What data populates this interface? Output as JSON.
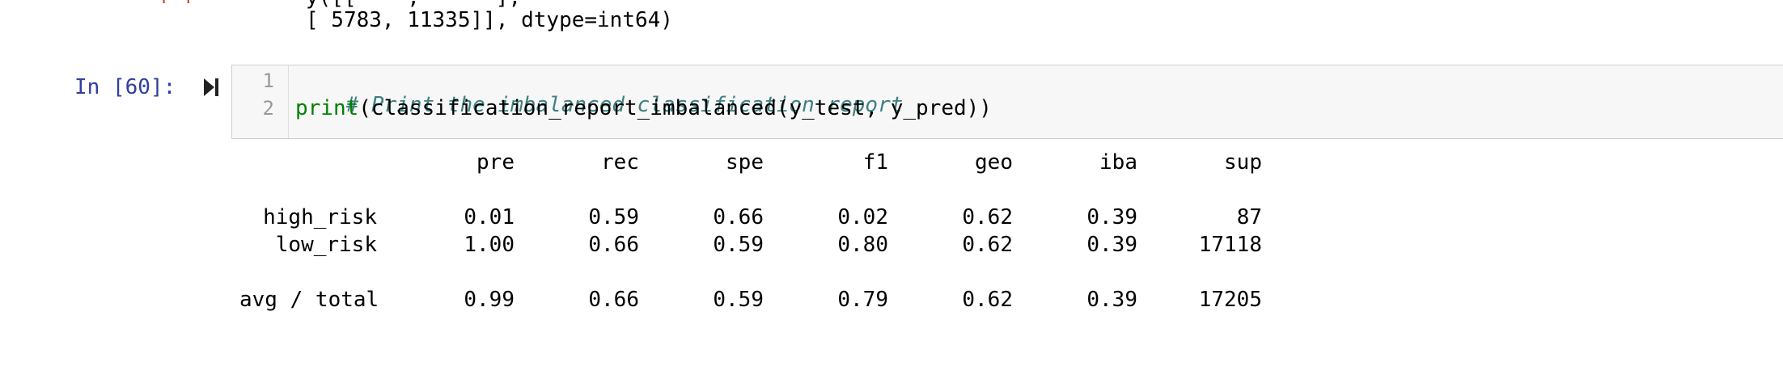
{
  "previous_output": {
    "prompt_fragment": "[  ]",
    "line_1": "y([[    ,      ],",
    "line_2": "[ 5783, 11335]], dtype=int64)"
  },
  "cell": {
    "prompt": "In [60]:",
    "run_icon": "step-run-icon",
    "lines": [
      {
        "num": "1",
        "comment": "# Print the imbalanced classification report"
      },
      {
        "num": "2",
        "builtin": "print",
        "rest": "(classification_report_imbalanced(y_test, y_pred))"
      }
    ]
  },
  "report": {
    "columns": [
      "pre",
      "rec",
      "spe",
      "f1",
      "geo",
      "iba",
      "sup"
    ],
    "rows": [
      {
        "label": "high_risk",
        "values": [
          "0.01",
          "0.59",
          "0.66",
          "0.02",
          "0.62",
          "0.39",
          "87"
        ]
      },
      {
        "label": "low_risk",
        "values": [
          "1.00",
          "0.66",
          "0.59",
          "0.80",
          "0.62",
          "0.39",
          "17118"
        ]
      },
      {
        "label": "avg / total",
        "values": [
          "0.99",
          "0.66",
          "0.59",
          "0.79",
          "0.62",
          "0.39",
          "17205"
        ]
      }
    ]
  },
  "colors": {
    "prompt": "#303f9f",
    "comment": "#408080",
    "builtin": "#008000",
    "input_bg": "#f7f7f7"
  }
}
